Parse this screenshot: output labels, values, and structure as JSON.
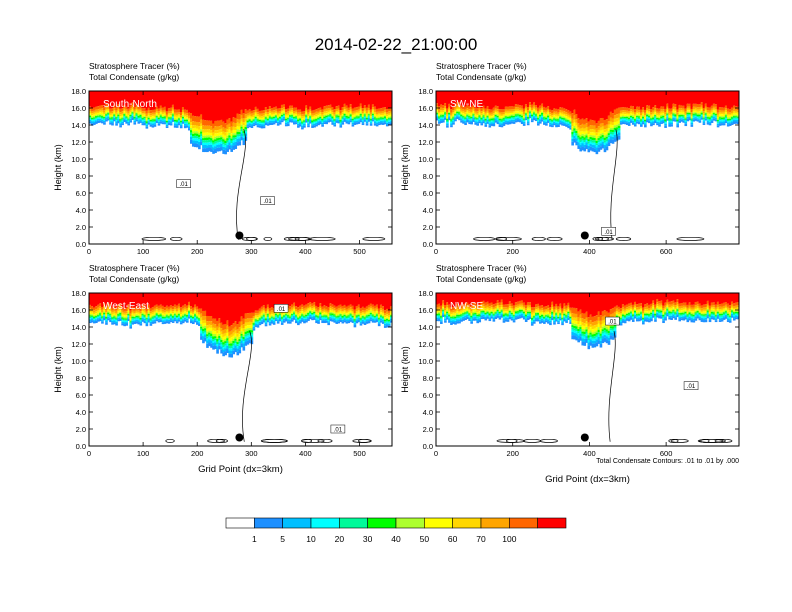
{
  "figure": {
    "title": "2014-02-22_21:00:00",
    "contour_note": "Total Condensate Contours: .01 to .01 by .000",
    "xlabel": "Grid Point (dx=3km)"
  },
  "colorbar": {
    "levels": [
      "1",
      "5",
      "10",
      "20",
      "30",
      "40",
      "50",
      "60",
      "70",
      "100"
    ],
    "colors": [
      "#ffffff",
      "#1e90ff",
      "#00bfff",
      "#00ffff",
      "#00fa9a",
      "#00ff00",
      "#adff2f",
      "#ffff00",
      "#ffd700",
      "#ffa500",
      "#ff6600",
      "#ff0000"
    ]
  },
  "chart_data": [
    {
      "type": "heatmap",
      "label": "South-North",
      "title_line1": "Stratosphere Tracer   (%)",
      "title_line2": "Total Condensate   (g/kg)",
      "ylabel": "Height (km)",
      "xlabel": "",
      "xlim": [
        0,
        560
      ],
      "xticks": [
        "0",
        "100",
        "200",
        "300",
        "400",
        "500"
      ],
      "xtick_values": [
        0,
        100,
        200,
        300,
        400,
        500
      ],
      "ylim": [
        0,
        18
      ],
      "yticks": [
        "0.0",
        "2.0",
        "4.0",
        "6.0",
        "8.0",
        "10.0",
        "12.0",
        "14.0",
        "16.0",
        "18.0"
      ],
      "tropopause_km": 14.2,
      "dip": {
        "center": 240,
        "width": 45,
        "depth_km": 1.9
      },
      "contour_labels": [
        {
          "x": 175,
          "y": 7.1,
          "text": ".01"
        },
        {
          "x": 330,
          "y": 5.1,
          "text": ".01"
        }
      ],
      "dot": {
        "x": 278,
        "y": 1.0
      }
    },
    {
      "type": "heatmap",
      "label": "SW-NE",
      "title_line1": "Stratosphere Tracer   (%)",
      "title_line2": "Total Condensate   (g/kg)",
      "ylabel": "Height (km)",
      "xlabel": "",
      "xlim": [
        0,
        790
      ],
      "xticks": [
        "0",
        "200",
        "400",
        "600"
      ],
      "xtick_values": [
        0,
        200,
        400,
        600
      ],
      "ylim": [
        0,
        18
      ],
      "yticks": [
        "0.0",
        "2.0",
        "4.0",
        "6.0",
        "8.0",
        "10.0",
        "12.0",
        "14.0",
        "16.0",
        "18.0"
      ],
      "tropopause_km": 14.3,
      "dip": {
        "center": 415,
        "width": 55,
        "depth_km": 1.8
      },
      "contour_labels": [
        {
          "x": 450,
          "y": 1.5,
          "text": ".01"
        }
      ],
      "dot": {
        "x": 388,
        "y": 1.0
      }
    },
    {
      "type": "heatmap",
      "label": "West-East",
      "title_line1": "Stratosphere Tracer   (%)",
      "title_line2": "Total Condensate   (g/kg)",
      "ylabel": "Height (km)",
      "xlabel": "Grid Point (dx=3km)",
      "xlim": [
        0,
        560
      ],
      "xticks": [
        "0",
        "100",
        "200",
        "300",
        "400",
        "500"
      ],
      "xtick_values": [
        0,
        100,
        200,
        300,
        400,
        500
      ],
      "ylim": [
        0,
        18
      ],
      "yticks": [
        "0.0",
        "2.0",
        "4.0",
        "6.0",
        "8.0",
        "10.0",
        "12.0",
        "14.0",
        "16.0",
        "18.0"
      ],
      "tropopause_km": 14.6,
      "dip": {
        "center": 255,
        "width": 40,
        "depth_km": 2.2
      },
      "contour_labels": [
        {
          "x": 355,
          "y": 16.2,
          "text": ".01"
        },
        {
          "x": 460,
          "y": 2.0,
          "text": ".01"
        }
      ],
      "dot": {
        "x": 278,
        "y": 1.0
      }
    },
    {
      "type": "heatmap",
      "label": "NW-SE",
      "title_line1": "Stratosphere Tracer   (%)",
      "title_line2": "Total Condensate   (g/kg)",
      "ylabel": "Height (km)",
      "xlabel": "Grid Point (dx=3km)",
      "xlim": [
        0,
        790
      ],
      "xticks": [
        "0",
        "200",
        "400",
        "600"
      ],
      "xtick_values": [
        0,
        200,
        400,
        600
      ],
      "ylim": [
        0,
        18
      ],
      "yticks": [
        "0.0",
        "2.0",
        "4.0",
        "6.0",
        "8.0",
        "10.0",
        "12.0",
        "14.0",
        "16.0",
        "18.0"
      ],
      "tropopause_km": 14.9,
      "dip": {
        "center": 410,
        "width": 55,
        "depth_km": 1.6
      },
      "contour_labels": [
        {
          "x": 460,
          "y": 14.7,
          "text": ".01"
        },
        {
          "x": 665,
          "y": 7.1,
          "text": ".01"
        }
      ],
      "dot": {
        "x": 388,
        "y": 1.0
      }
    }
  ]
}
